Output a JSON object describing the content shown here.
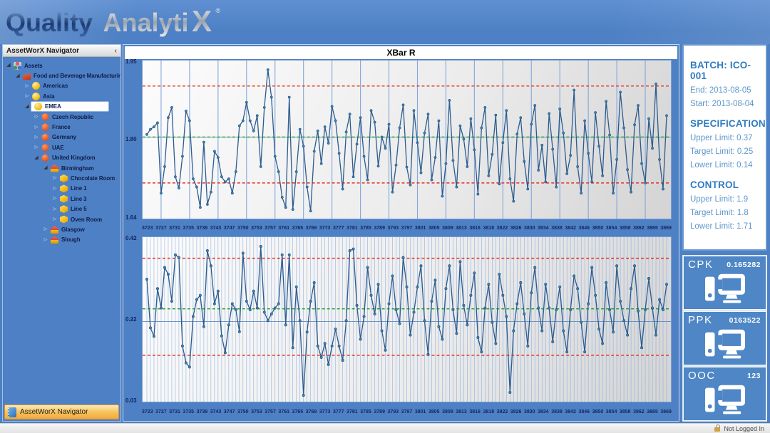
{
  "header": {
    "logo_primary": "Quality",
    "logo_secondary": "Analyti",
    "logo_x": "X",
    "registered_mark": "®"
  },
  "sidebar": {
    "title": "AssetWorX Navigator",
    "collapse_chevron": "‹",
    "footer_label": "AssetWorX Navigator",
    "tree": [
      {
        "depth": 0,
        "state": "expanded",
        "icon": "assets",
        "label": "Assets"
      },
      {
        "depth": 1,
        "state": "expanded",
        "icon": "factory",
        "label": "Food and Beverage Manufacturing"
      },
      {
        "depth": 2,
        "state": "collapsed",
        "icon": "globe",
        "label": "Americas"
      },
      {
        "depth": 2,
        "state": "collapsed",
        "icon": "globe",
        "label": "Asia"
      },
      {
        "depth": 2,
        "state": "expanded",
        "icon": "globe",
        "label": "EMEA",
        "selected": true
      },
      {
        "depth": 3,
        "state": "collapsed",
        "icon": "gem",
        "label": "Czech Republic"
      },
      {
        "depth": 3,
        "state": "collapsed",
        "icon": "gem",
        "label": "France"
      },
      {
        "depth": 3,
        "state": "collapsed",
        "icon": "gem",
        "label": "Germany"
      },
      {
        "depth": 3,
        "state": "collapsed",
        "icon": "gem",
        "label": "UAE"
      },
      {
        "depth": 3,
        "state": "expanded",
        "icon": "gem",
        "label": "United Kingdom"
      },
      {
        "depth": 4,
        "state": "expanded",
        "icon": "site",
        "label": "Birmingham"
      },
      {
        "depth": 5,
        "state": "collapsed",
        "icon": "cube",
        "label": "Chocolate Room"
      },
      {
        "depth": 5,
        "state": "collapsed",
        "icon": "cube",
        "label": "Line 1"
      },
      {
        "depth": 5,
        "state": "collapsed",
        "icon": "cube",
        "label": "Line 3"
      },
      {
        "depth": 5,
        "state": "collapsed",
        "icon": "cube",
        "label": "Line 5"
      },
      {
        "depth": 5,
        "state": "collapsed",
        "icon": "cube",
        "label": "Oven Room"
      },
      {
        "depth": 4,
        "state": "collapsed",
        "icon": "site",
        "label": "Glasgow"
      },
      {
        "depth": 4,
        "state": "collapsed",
        "icon": "site",
        "label": "Slough"
      }
    ]
  },
  "info_panel": {
    "batch_title": "BATCH: ICO-001",
    "batch_lines": [
      "End: 2013-08-05",
      "Start: 2013-08-04"
    ],
    "sections": [
      {
        "title": "SPECIFICATION",
        "lines": [
          "Upper Limit: 0.37",
          "Target Limit: 0.25",
          "Lower Limit: 0.14"
        ]
      },
      {
        "title": "CONTROL",
        "lines": [
          "Upper Limit: 1.9",
          "Target Limit: 1.8",
          "Lower Limit: 1.71"
        ]
      }
    ]
  },
  "kpi": {
    "items": [
      {
        "label": "CPK",
        "value": "0.165282"
      },
      {
        "label": "PPK",
        "value": "0163522"
      },
      {
        "label": "OOC",
        "value": "123"
      }
    ]
  },
  "statusbar": {
    "login_status": "Not Logged In"
  },
  "colors": {
    "accent_blue": "#4d80c4",
    "chart_line": "#2c5b8f",
    "marker": "#3c82b4",
    "limit_red": "#e53227",
    "target_green": "#17991f",
    "gridline": "#84a7da",
    "kpi_tile": "#4e86c6"
  },
  "chart_data": {
    "type": "line",
    "title": "XBar R",
    "legend_position": "none",
    "grid": true,
    "xticks": [
      "3723",
      "3727",
      "3731",
      "3735",
      "3739",
      "3743",
      "3747",
      "3750",
      "3753",
      "3757",
      "3761",
      "3765",
      "3769",
      "3773",
      "3777",
      "3781",
      "3785",
      "3789",
      "3793",
      "3797",
      "3801",
      "3805",
      "3809",
      "3813",
      "3816",
      "3818",
      "3822",
      "3826",
      "3830",
      "3834",
      "3838",
      "3842",
      "3846",
      "3850",
      "3854",
      "3858",
      "3862",
      "3865",
      "3869"
    ],
    "charts": [
      {
        "name": "XBar",
        "ylim": [
          1.64,
          1.95
        ],
        "yticks": [
          "1.95",
          "1.80",
          "1.64"
        ],
        "midline": 1.8,
        "limit_lines": {
          "upper": 1.9,
          "target": 1.8,
          "lower": 1.71
        },
        "values": [
          1.805,
          1.815,
          1.82,
          1.828,
          1.69,
          1.742,
          1.838,
          1.858,
          1.722,
          1.7,
          1.762,
          1.851,
          1.832,
          1.718,
          1.702,
          1.662,
          1.79,
          1.668,
          1.692,
          1.772,
          1.76,
          1.722,
          1.712,
          1.718,
          1.69,
          1.732,
          1.822,
          1.832,
          1.868,
          1.832,
          1.812,
          1.842,
          1.742,
          1.858,
          1.932,
          1.878,
          1.762,
          1.732,
          1.682,
          1.662,
          1.878,
          1.658,
          1.732,
          1.815,
          1.782,
          1.702,
          1.655,
          1.772,
          1.812,
          1.748,
          1.82,
          1.788,
          1.86,
          1.832,
          1.768,
          1.698,
          1.81,
          1.845,
          1.722,
          1.786,
          1.838,
          1.762,
          1.716,
          1.852,
          1.829,
          1.743,
          1.8,
          1.778,
          1.825,
          1.692,
          1.745,
          1.818,
          1.863,
          1.741,
          1.706,
          1.852,
          1.789,
          1.73,
          1.808,
          1.845,
          1.716,
          1.76,
          1.832,
          1.684,
          1.748,
          1.872,
          1.754,
          1.702,
          1.822,
          1.796,
          1.742,
          1.836,
          1.775,
          1.688,
          1.818,
          1.858,
          1.724,
          1.766,
          1.843,
          1.708,
          1.789,
          1.852,
          1.718,
          1.674,
          1.806,
          1.838,
          1.752,
          1.698,
          1.825,
          1.862,
          1.735,
          1.784,
          1.712,
          1.846,
          1.776,
          1.702,
          1.855,
          1.808,
          1.728,
          1.764,
          1.892,
          1.742,
          1.69,
          1.832,
          1.768,
          1.712,
          1.848,
          1.782,
          1.724,
          1.87,
          1.804,
          1.69,
          1.756,
          1.888,
          1.818,
          1.736,
          1.692,
          1.824,
          1.862,
          1.748,
          1.71,
          1.836,
          1.778,
          1.904,
          1.756,
          1.698,
          1.842
        ]
      },
      {
        "name": "R",
        "ylim": [
          0.03,
          0.42
        ],
        "yticks": [
          "0.42",
          "0.22",
          "0.03"
        ],
        "midline": 0.22,
        "limit_lines": {
          "upper": 0.37,
          "target": 0.25,
          "lower": 0.14
        },
        "values": [
          0.32,
          0.205,
          0.185,
          0.298,
          0.252,
          0.348,
          0.332,
          0.268,
          0.378,
          0.372,
          0.162,
          0.122,
          0.112,
          0.232,
          0.272,
          0.282,
          0.208,
          0.388,
          0.352,
          0.262,
          0.292,
          0.186,
          0.146,
          0.212,
          0.262,
          0.248,
          0.196,
          0.382,
          0.268,
          0.248,
          0.292,
          0.252,
          0.398,
          0.242,
          0.222,
          0.238,
          0.252,
          0.262,
          0.378,
          0.212,
          0.378,
          0.158,
          0.302,
          0.222,
          0.045,
          0.195,
          0.268,
          0.312,
          0.162,
          0.135,
          0.168,
          0.118,
          0.162,
          0.202,
          0.162,
          0.128,
          0.222,
          0.388,
          0.392,
          0.258,
          0.178,
          0.232,
          0.348,
          0.282,
          0.238,
          0.308,
          0.198,
          0.152,
          0.262,
          0.328,
          0.248,
          0.215,
          0.372,
          0.302,
          0.188,
          0.242,
          0.302,
          0.352,
          0.222,
          0.142,
          0.268,
          0.318,
          0.208,
          0.178,
          0.298,
          0.352,
          0.248,
          0.192,
          0.362,
          0.258,
          0.212,
          0.282,
          0.335,
          0.182,
          0.148,
          0.252,
          0.308,
          0.218,
          0.168,
          0.332,
          0.282,
          0.232,
          0.052,
          0.198,
          0.262,
          0.312,
          0.238,
          0.162,
          0.288,
          0.348,
          0.252,
          0.198,
          0.308,
          0.252,
          0.172,
          0.248,
          0.302,
          0.198,
          0.148,
          0.248,
          0.328,
          0.298,
          0.218,
          0.148,
          0.262,
          0.348,
          0.282,
          0.202,
          0.168,
          0.312,
          0.248,
          0.195,
          0.352,
          0.268,
          0.222,
          0.188,
          0.298,
          0.352,
          0.245,
          0.158,
          0.248,
          0.322,
          0.252,
          0.188,
          0.272,
          0.248,
          0.308
        ]
      }
    ]
  }
}
